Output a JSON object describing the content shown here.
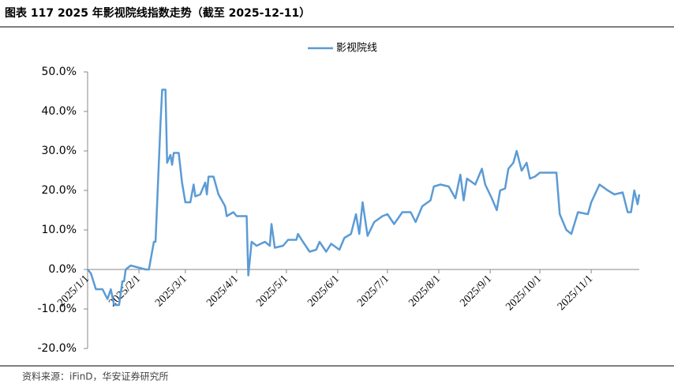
{
  "chart_data": {
    "type": "line",
    "title": "图表 117 2025 年影视院线指数走势（截至 2025-12-11）",
    "source": "资料来源：iFinD，华安证券研究所",
    "x": [
      "2025/1/1",
      "2025/1/3",
      "2025/1/6",
      "2025/1/10",
      "2025/1/13",
      "2025/1/15",
      "2025/1/17",
      "2025/1/20",
      "2025/1/22",
      "2025/1/23",
      "2025/1/24",
      "2025/1/27",
      "2025/2/5",
      "2025/2/7",
      "2025/2/10",
      "2025/2/11",
      "2025/2/14",
      "2025/2/15",
      "2025/2/17",
      "2025/2/18",
      "2025/2/20",
      "2025/2/21",
      "2025/2/22",
      "2025/2/25",
      "2025/2/27",
      "2025/3/1",
      "2025/3/4",
      "2025/3/6",
      "2025/3/7",
      "2025/3/10",
      "2025/3/13",
      "2025/3/14",
      "2025/3/15",
      "2025/3/18",
      "2025/3/21",
      "2025/3/25",
      "2025/3/26",
      "2025/3/30",
      "2025/4/1",
      "2025/4/7",
      "2025/4/8",
      "2025/4/10",
      "2025/4/13",
      "2025/4/18",
      "2025/4/21",
      "2025/4/22",
      "2025/4/24",
      "2025/4/29",
      "2025/5/2",
      "2025/5/7",
      "2025/5/8",
      "2025/5/11",
      "2025/5/15",
      "2025/5/19",
      "2025/5/21",
      "2025/5/25",
      "2025/5/28",
      "2025/6/2",
      "2025/6/5",
      "2025/6/9",
      "2025/6/12",
      "2025/6/14",
      "2025/6/16",
      "2025/6/19",
      "2025/6/23",
      "2025/6/28",
      "2025/7/1",
      "2025/7/5",
      "2025/7/10",
      "2025/7/15",
      "2025/7/18",
      "2025/7/22",
      "2025/7/27",
      "2025/7/29",
      "2025/8/2",
      "2025/8/7",
      "2025/8/11",
      "2025/8/14",
      "2025/8/16",
      "2025/8/18",
      "2025/8/23",
      "2025/8/27",
      "2025/8/29",
      "2025/9/2",
      "2025/9/5",
      "2025/9/7",
      "2025/9/10",
      "2025/9/12",
      "2025/9/15",
      "2025/9/17",
      "2025/9/20",
      "2025/9/23",
      "2025/9/25",
      "2025/9/28",
      "2025/10/1",
      "2025/10/11",
      "2025/10/13",
      "2025/10/17",
      "2025/10/20",
      "2025/10/24",
      "2025/10/30",
      "2025/11/1",
      "2025/11/6",
      "2025/11/11",
      "2025/11/15",
      "2025/11/20",
      "2025/11/23",
      "2025/11/25",
      "2025/11/27",
      "2025/11/29",
      "2025/11/30"
    ],
    "series": [
      {
        "name": "影视院线",
        "color": "#5b9bd5",
        "values": [
          0,
          -1,
          -5,
          -5,
          -7.5,
          -5,
          -9,
          -9,
          -3,
          -3,
          0,
          1,
          0,
          0,
          7,
          7,
          37,
          45.5,
          45.5,
          27,
          29,
          26.5,
          29.5,
          29.5,
          22,
          17,
          17,
          21.5,
          18.5,
          19,
          22,
          19,
          23.5,
          23.5,
          19,
          16,
          13.5,
          14.5,
          13.5,
          13.5,
          -1.5,
          7,
          6,
          7,
          6,
          11.5,
          5.5,
          6,
          7.5,
          7.5,
          9,
          7,
          4.5,
          5,
          7,
          4.5,
          6.5,
          5,
          8,
          9,
          14,
          9,
          17,
          8.5,
          12,
          13.5,
          14,
          11.5,
          14.5,
          14.5,
          12,
          16,
          17.5,
          21,
          21.5,
          21,
          18,
          24,
          17.5,
          23,
          21.5,
          25.5,
          21.5,
          18,
          15,
          20,
          20.5,
          25.5,
          27,
          30,
          25,
          27,
          23,
          23.5,
          24.5,
          24.5,
          14,
          10,
          9,
          14.5,
          14,
          17,
          21.5,
          20,
          19,
          19.5,
          14.5,
          14.5,
          20,
          16.5,
          19
        ]
      }
    ],
    "xlim": [
      "2025/1/1",
      "2025/11/30"
    ],
    "xticks": [
      "2025/1/1",
      "2025/2/1",
      "2025/3/1",
      "2025/4/1",
      "2025/5/1",
      "2025/6/1",
      "2025/7/1",
      "2025/8/1",
      "2025/9/1",
      "2025/10/1",
      "2025/11/1"
    ],
    "ylim": [
      -20,
      50
    ],
    "yticks": [
      {
        "value": -20,
        "label": "-20.0%"
      },
      {
        "value": -10,
        "label": "-10.0%"
      },
      {
        "value": 0,
        "label": "0.0%"
      },
      {
        "value": 10,
        "label": "10.0%"
      },
      {
        "value": 20,
        "label": "20.0%"
      },
      {
        "value": 30,
        "label": "30.0%"
      },
      {
        "value": 40,
        "label": "40.0%"
      },
      {
        "value": 50,
        "label": "50.0%"
      }
    ],
    "legend": "top"
  }
}
